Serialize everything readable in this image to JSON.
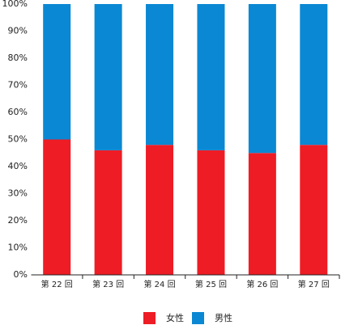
{
  "chart_data": {
    "type": "stacked_bar",
    "categories": [
      "第 22 回",
      "第 23 回",
      "第 24 回",
      "第 25 回",
      "第 26 回",
      "第 27 回"
    ],
    "series": [
      {
        "name": "女性",
        "color": "#ee1c25",
        "values": [
          50,
          46,
          48,
          46,
          45,
          48
        ]
      },
      {
        "name": "男性",
        "color": "#0a88d3",
        "values": [
          50,
          54,
          52,
          54,
          55,
          52
        ]
      }
    ],
    "ylim": [
      0,
      100
    ],
    "yticks": [
      {
        "value": 0,
        "label": "0%"
      },
      {
        "value": 10,
        "label": "10%"
      },
      {
        "value": 20,
        "label": "20%"
      },
      {
        "value": 30,
        "label": "30%"
      },
      {
        "value": 40,
        "label": "40%"
      },
      {
        "value": 50,
        "label": "50%"
      },
      {
        "value": 60,
        "label": "60%"
      },
      {
        "value": 70,
        "label": "70%"
      },
      {
        "value": 80,
        "label": "80%"
      },
      {
        "value": 90,
        "label": "90%"
      },
      {
        "value": 100,
        "label": "100%"
      }
    ],
    "grid": false,
    "legend": "bottom"
  }
}
